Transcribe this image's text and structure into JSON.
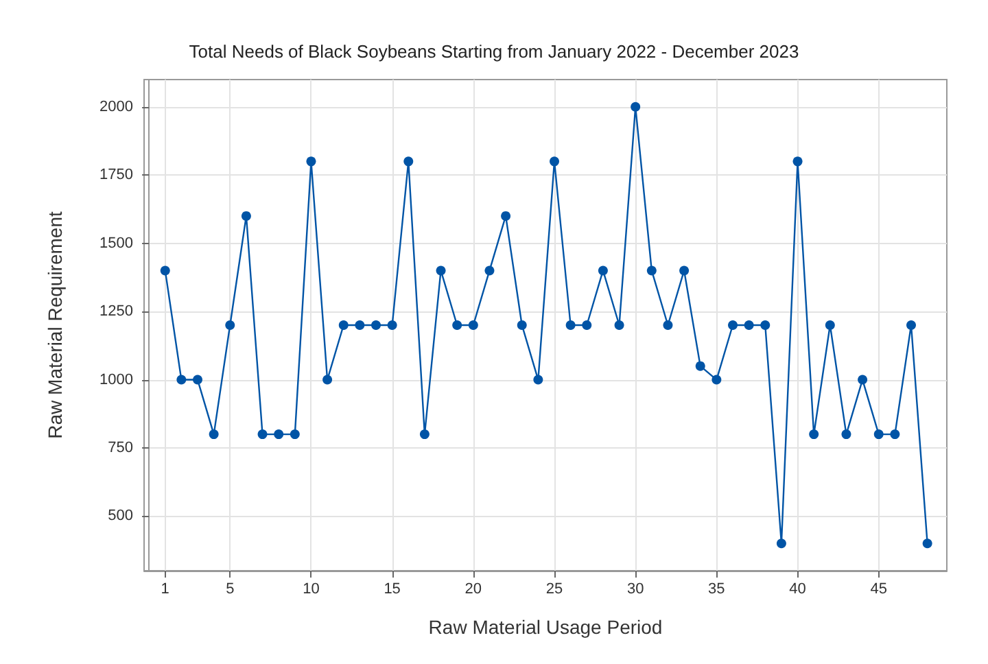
{
  "chart_data": {
    "type": "line",
    "title": "Total Needs of Black Soybeans Starting from January 2022 - December 2023",
    "xlabel": "Raw Material Usage Period",
    "ylabel": "Raw Material Requirement",
    "x": [
      1,
      2,
      3,
      4,
      5,
      6,
      7,
      8,
      9,
      10,
      11,
      12,
      13,
      14,
      15,
      16,
      17,
      18,
      19,
      20,
      21,
      22,
      23,
      24,
      25,
      26,
      27,
      28,
      29,
      30,
      31,
      32,
      33,
      34,
      35,
      36,
      37,
      38,
      39,
      40,
      41,
      42,
      43,
      44,
      45,
      46,
      47,
      48
    ],
    "series": [
      {
        "color": "#0054a6",
        "values": [
          1400,
          1000,
          1000,
          800,
          1200,
          1600,
          800,
          800,
          800,
          1800,
          1000,
          1200,
          1200,
          1200,
          1200,
          1800,
          800,
          1400,
          1200,
          1200,
          1400,
          1600,
          1200,
          1000,
          1800,
          1200,
          1200,
          1400,
          1200,
          2000,
          1400,
          1200,
          1400,
          1050,
          1000,
          1200,
          1200,
          1200,
          400,
          1800,
          800,
          1200,
          800,
          1000,
          800,
          800,
          1200,
          400
        ]
      }
    ],
    "xlim": [
      -0.3,
      49.2
    ],
    "xticks": [
      1,
      5,
      10,
      15,
      20,
      25,
      30,
      35,
      40,
      45
    ],
    "ylim": [
      300,
      2100
    ],
    "yticks": [
      500,
      750,
      1000,
      1250,
      1500,
      1750,
      2000
    ],
    "grid": true,
    "marker": "circle",
    "line_style": "solid"
  }
}
